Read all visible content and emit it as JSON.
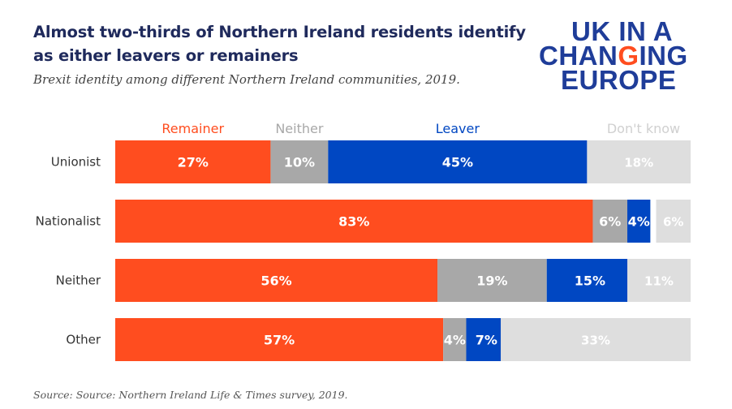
{
  "header": {
    "title": "Almost two-thirds of Northern Ireland residents identify as either leavers or remainers",
    "subtitle": "Brexit identity among different Northern Ireland communities, 2019."
  },
  "logo": {
    "line1": "UK IN A",
    "line2_pre": "CHAN",
    "line2_accent": "G",
    "line2_post": "ING",
    "line3": "EUROPE",
    "colors": {
      "primary": "#1f3d99",
      "accent": "#ff4d1f"
    }
  },
  "footer": {
    "source": "Source: Source: Northern Ireland Life & Times survey, 2019."
  },
  "chart_data": {
    "type": "bar",
    "orientation": "horizontal",
    "stacked": true,
    "categories": [
      "Unionist",
      "Nationalist",
      "Neither",
      "Other"
    ],
    "xlim": [
      0,
      100
    ],
    "grid": false,
    "legend_placement": "top",
    "series": [
      {
        "name": "Remainer",
        "values": [
          27,
          83,
          56,
          57
        ],
        "labels": [
          "27%",
          "83%",
          "56%",
          "57%"
        ],
        "color": "#ff4d1f"
      },
      {
        "name": "Neither",
        "values": [
          10,
          6,
          19,
          4
        ],
        "labels": [
          "10%",
          "6%",
          "19%",
          "4%"
        ],
        "color": "#a8a8a8"
      },
      {
        "name": "Leaver",
        "values": [
          45,
          4,
          15,
          7
        ],
        "labels": [
          "45%",
          "4%",
          "15%",
          "7%"
        ],
        "color": "#0047c2"
      },
      {
        "name": "Don't know",
        "values": [
          18,
          6,
          11,
          33
        ],
        "labels": [
          "18%",
          "6%",
          "11%",
          "33%"
        ],
        "color": "#dedede",
        "placement": "right-aligned"
      }
    ]
  }
}
